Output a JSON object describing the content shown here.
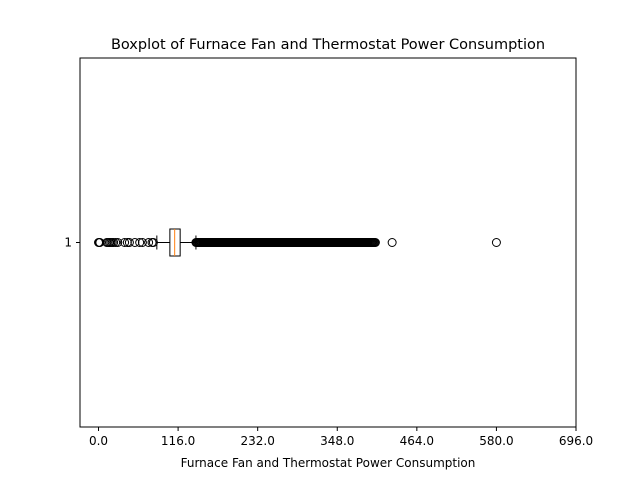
{
  "chart_data": {
    "type": "boxplot",
    "orientation": "horizontal",
    "title": "Boxplot of Furnace Fan and Thermostat Power Consumption",
    "xlabel": "Furnace Fan and Thermostat Power Consumption",
    "ylabel": "",
    "xlim": [
      -27,
      696
    ],
    "x_ticks": [
      0.0,
      116.0,
      232.0,
      348.0,
      464.0,
      580.0,
      696.0
    ],
    "x_tick_labels": [
      "0.0",
      "116.0",
      "232.0",
      "348.0",
      "464.0",
      "580.0",
      "696.0"
    ],
    "y_tick_labels": [
      "1"
    ],
    "grid": false,
    "colors": {
      "box": "#000000",
      "median": "#ff7f0e",
      "flier": "#000000",
      "background": "#ffffff"
    },
    "boxes": [
      {
        "label": "1",
        "whisker_low": 85,
        "q1": 104,
        "median": 111,
        "q3": 119,
        "whisker_high": 142,
        "fliers_low": [
          0,
          1,
          2,
          12,
          14,
          16,
          18,
          20,
          22,
          25,
          28,
          38,
          42,
          45,
          53,
          60,
          64,
          73,
          78,
          80
        ],
        "fliers_high_range": [
          142,
          404
        ],
        "fliers_high_extra": [
          428,
          580
        ]
      }
    ]
  }
}
